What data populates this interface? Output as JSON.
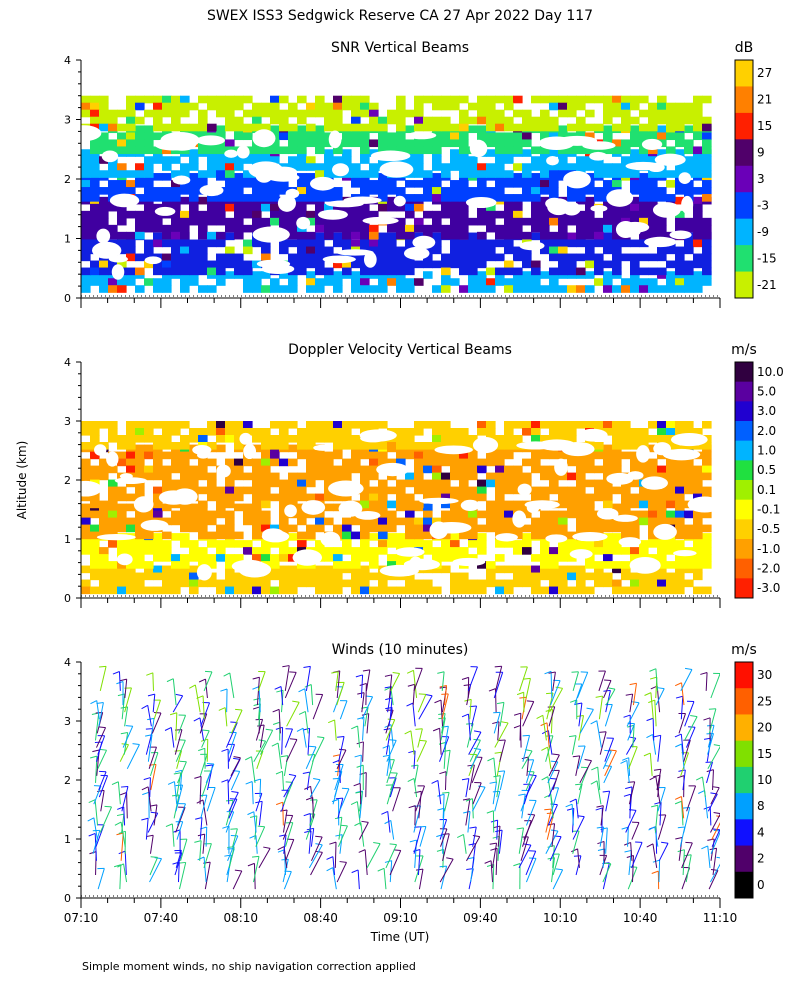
{
  "figure": {
    "title": "SWEX ISS3 Sedgwick Reserve CA  27 Apr 2022 Day 117",
    "ylabel": "Altitude (km)",
    "xlabel": "Time (UT)",
    "footnote": "Simple moment winds, no ship navigation correction applied"
  },
  "chart_data": [
    {
      "type": "heatmap",
      "title": "SNR Vertical Beams",
      "colorbar_unit": "dB",
      "ylim": [
        0,
        4
      ],
      "yticks": [
        "0",
        "1",
        "2",
        "3",
        "4"
      ],
      "xticks": [],
      "colorbar": {
        "labels": [
          "27",
          "21",
          "15",
          "9",
          "3",
          "-3",
          "-9",
          "-15",
          "-21"
        ],
        "colors": [
          "#ffd000",
          "#ff8000",
          "#ff2000",
          "#50006a",
          "#6a00b8",
          "#0040ff",
          "#00b4ff",
          "#20e070",
          "#c8f000"
        ]
      },
      "layers": [
        {
          "range_km": [
            0.15,
            0.45
          ],
          "color": "#00b4ff"
        },
        {
          "range_km": [
            0.45,
            1.1
          ],
          "color": "#1020e0"
        },
        {
          "range_km": [
            1.1,
            1.7
          ],
          "color": "#4000a0"
        },
        {
          "range_km": [
            1.7,
            2.1
          ],
          "color": "#0040ff"
        },
        {
          "range_km": [
            2.1,
            2.5
          ],
          "color": "#00b4ff"
        },
        {
          "range_km": [
            2.5,
            2.9
          ],
          "color": "#20e070"
        },
        {
          "range_km": [
            2.9,
            3.4
          ],
          "color": "#c8f000"
        }
      ]
    },
    {
      "type": "heatmap",
      "title": "Doppler Velocity Vertical Beams",
      "colorbar_unit": "m/s",
      "ylim": [
        0,
        4
      ],
      "yticks": [
        "0",
        "1",
        "2",
        "3",
        "4"
      ],
      "xticks": [],
      "colorbar": {
        "labels": [
          "10.0",
          "5.0",
          "3.0",
          "2.0",
          "1.0",
          "0.5",
          "0.1",
          "-0.1",
          "-0.5",
          "-1.0",
          "-2.0",
          "-3.0"
        ],
        "colors": [
          "#300040",
          "#5a00a0",
          "#2000d0",
          "#0060ff",
          "#00b4ff",
          "#20e040",
          "#a0f000",
          "#ffff00",
          "#ffd000",
          "#ffa000",
          "#ff6000",
          "#ff2000"
        ]
      },
      "layers": [
        {
          "range_km": [
            0.15,
            0.55
          ],
          "color": "#ffd000"
        },
        {
          "range_km": [
            0.55,
            1.1
          ],
          "color": "#ffff00"
        },
        {
          "range_km": [
            1.1,
            1.6
          ],
          "color": "#ffa000"
        },
        {
          "range_km": [
            1.6,
            2.6
          ],
          "color": "#ffa000"
        },
        {
          "range_km": [
            2.6,
            3.0
          ],
          "color": "#ffd000"
        }
      ]
    },
    {
      "type": "scatter",
      "title": "Winds (10 minutes)",
      "colorbar_unit": "m/s",
      "ylim": [
        0,
        4
      ],
      "yticks": [
        "0",
        "1",
        "2",
        "3",
        "4"
      ],
      "x_range": [
        "07:10",
        "11:10"
      ],
      "xticks": [
        "07:10",
        "07:40",
        "08:10",
        "08:40",
        "09:10",
        "09:40",
        "10:10",
        "10:40",
        "11:10"
      ],
      "colorbar": {
        "labels": [
          "30",
          "25",
          "20",
          "15",
          "10",
          "8",
          "4",
          "2",
          "0"
        ],
        "colors": [
          "#ff1000",
          "#ff6000",
          "#ffb000",
          "#80e000",
          "#20d070",
          "#00a0ff",
          "#1010ff",
          "#50006a",
          "#000000"
        ]
      },
      "profile_times": [
        "07:16",
        "07:26",
        "07:36",
        "07:46",
        "07:56",
        "08:06",
        "08:16",
        "08:26",
        "08:36",
        "08:46",
        "08:56",
        "09:06",
        "09:16",
        "09:26",
        "09:36",
        "09:46",
        "09:56",
        "10:06",
        "10:16",
        "10:26",
        "10:36",
        "10:46",
        "10:56",
        "11:06"
      ]
    }
  ]
}
